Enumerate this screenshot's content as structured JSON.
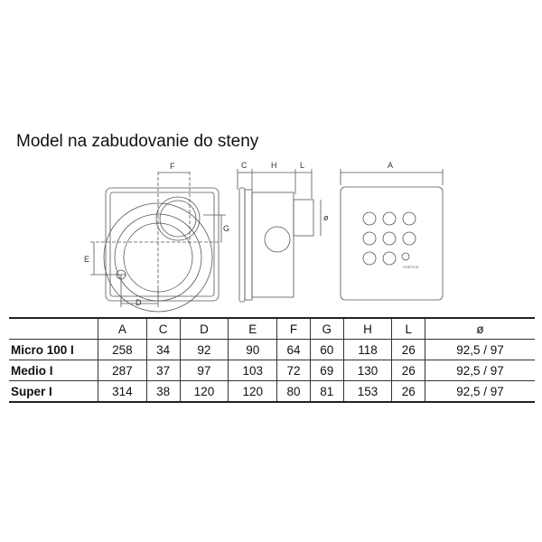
{
  "title": "Model na zabudovanie do steny",
  "drawings": {
    "front_labels": [
      "F",
      "G",
      "E",
      "D"
    ],
    "side_labels": [
      "C",
      "H",
      "L",
      "ø"
    ],
    "cover_labels": [
      "A"
    ],
    "logo": "VORTICE"
  },
  "table": {
    "headers": [
      "",
      "A",
      "C",
      "D",
      "E",
      "F",
      "G",
      "H",
      "L",
      "ø"
    ],
    "rows": [
      {
        "model": "Micro 100 I",
        "values": [
          "258",
          "34",
          "92",
          "90",
          "64",
          "60",
          "118",
          "26",
          "92,5 / 97"
        ]
      },
      {
        "model": "Medio I",
        "values": [
          "287",
          "37",
          "97",
          "103",
          "72",
          "69",
          "130",
          "26",
          "92,5 / 97"
        ]
      },
      {
        "model": "Super I",
        "values": [
          "314",
          "38",
          "120",
          "120",
          "80",
          "81",
          "153",
          "26",
          "92,5 / 97"
        ]
      }
    ]
  }
}
